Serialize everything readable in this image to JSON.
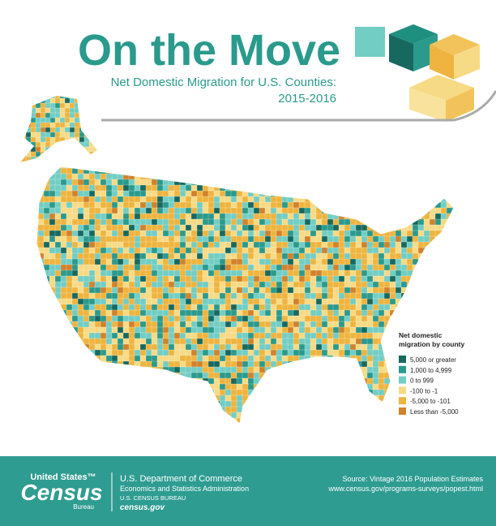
{
  "header": {
    "title": "On the Move",
    "subtitle": [
      "Net Domestic Migration for U.S. Counties:",
      "2015-2016"
    ]
  },
  "legend": {
    "title": [
      "Net domestic",
      "migration by county"
    ],
    "items": [
      {
        "label": "5,000 or greater",
        "color": "#17695f"
      },
      {
        "label": "1,000 to 4,999",
        "color": "#2a9a8c"
      },
      {
        "label": "0 to 999",
        "color": "#72cdc3"
      },
      {
        "label": "-100 to -1",
        "color": "#f7da85"
      },
      {
        "label": "-5,000 to -101",
        "color": "#eeb43f"
      },
      {
        "label": "Less than -5,000",
        "color": "#d0822c"
      }
    ]
  },
  "footer": {
    "logo": [
      "United States™",
      "Census",
      "Bureau"
    ],
    "agency": [
      "U.S. Department of Commerce",
      "Economics and Statistics Administration",
      "U.S. CENSUS BUREAU",
      "census.gov"
    ],
    "source": [
      "Source: Vintage 2016 Population Estimates",
      "www.census.gov/programs-surveys/popest.html"
    ]
  }
}
